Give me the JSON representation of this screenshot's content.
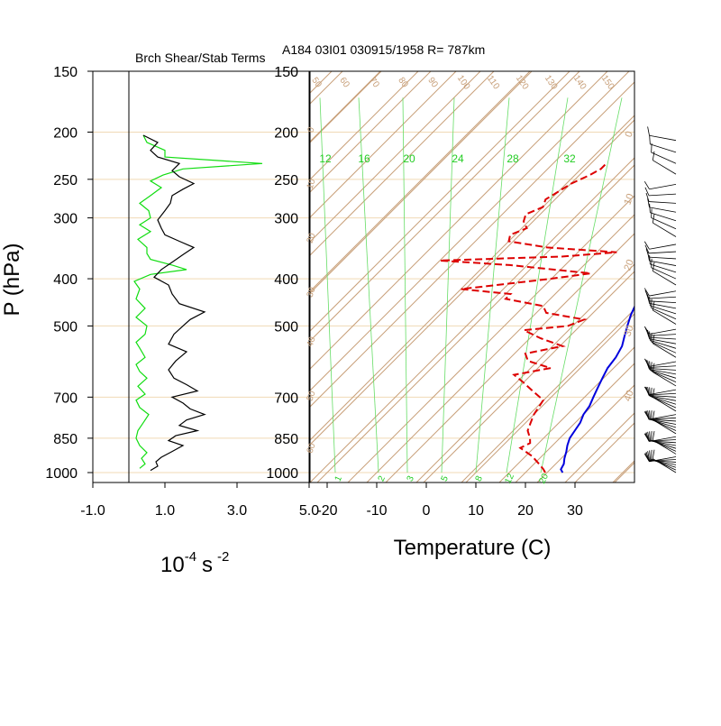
{
  "colors": {
    "background": "#ffffff",
    "isobar": "#f0d9b5",
    "isotherm": "#c8a07a",
    "adiabat_label": "#c8a07a",
    "mixing_line": "#66dd66",
    "mixing_label": "#22cc22",
    "temperature": "#0000dd",
    "dewpoint": "#dd0000",
    "richardson_green": "#11dd11",
    "richardson_black": "#000000",
    "frame": "#000000",
    "barb": "#000000"
  },
  "figure": {
    "header": "A184 03I01 030915/1958 R= 787km",
    "left_title": "Brch Shear/Stab Terms",
    "y_axis_title": "P (hPa)",
    "left_unit_base": "10",
    "left_unit_exp": "-4",
    "left_unit_s": "s",
    "left_unit_s_exp": "-2",
    "x_axis_title": "Temperature (C)"
  },
  "chart_data": [
    {
      "type": "line",
      "title": "Brch Shear/Stab Terms",
      "ylabel": "P (hPa)",
      "xlabel": "10-4 s -2",
      "y_scale": "log",
      "y_reversed": true,
      "xlim": [
        -1.0,
        5.0
      ],
      "ylim": [
        1000,
        150
      ],
      "x_ticks": [
        "-1.0",
        "1.0",
        "3.0",
        "5.0"
      ],
      "x_tick_values": [
        -1.0,
        1.0,
        3.0,
        5.0
      ],
      "y_ticks": [
        "150",
        "200",
        "250",
        "300",
        "400",
        "500",
        "700",
        "850",
        "1000"
      ],
      "y_tick_values": [
        150,
        200,
        250,
        300,
        400,
        500,
        700,
        850,
        1000
      ],
      "zero_line_x": 0,
      "series": [
        {
          "color": "#11dd11",
          "points": [
            [
              0.3,
              980
            ],
            [
              0.45,
              960
            ],
            [
              0.35,
              935
            ],
            [
              0.5,
              910
            ],
            [
              0.3,
              880
            ],
            [
              0.2,
              850
            ],
            [
              0.25,
              820
            ],
            [
              0.4,
              790
            ],
            [
              0.55,
              760
            ],
            [
              0.3,
              735
            ],
            [
              0.2,
              710
            ],
            [
              0.45,
              690
            ],
            [
              0.25,
              665
            ],
            [
              0.5,
              640
            ],
            [
              0.3,
              620
            ],
            [
              0.2,
              600
            ],
            [
              0.45,
              580
            ],
            [
              0.3,
              555
            ],
            [
              0.2,
              540
            ],
            [
              0.45,
              520
            ],
            [
              0.5,
              500
            ],
            [
              0.2,
              480
            ],
            [
              0.45,
              460
            ],
            [
              0.2,
              440
            ],
            [
              0.3,
              420
            ],
            [
              0.15,
              405
            ],
            [
              0.6,
              392
            ],
            [
              1.6,
              383
            ],
            [
              1.2,
              375
            ],
            [
              0.6,
              365
            ],
            [
              0.5,
              355
            ],
            [
              0.5,
              345
            ],
            [
              0.25,
              332
            ],
            [
              0.6,
              320
            ],
            [
              0.3,
              310
            ],
            [
              0.6,
              300
            ],
            [
              0.55,
              290
            ],
            [
              0.3,
              280
            ],
            [
              0.6,
              270
            ],
            [
              0.9,
              260
            ],
            [
              0.6,
              252
            ],
            [
              0.95,
              245
            ],
            [
              1.5,
              238
            ],
            [
              3.7,
              232
            ],
            [
              1.0,
              225
            ],
            [
              1.0,
              218
            ],
            [
              0.5,
              210
            ],
            [
              0.4,
              203
            ]
          ]
        },
        {
          "color": "#000000",
          "points": [
            [
              0.6,
              990
            ],
            [
              0.8,
              970
            ],
            [
              0.75,
              950
            ],
            [
              0.9,
              930
            ],
            [
              1.2,
              905
            ],
            [
              1.5,
              880
            ],
            [
              1.1,
              860
            ],
            [
              1.3,
              840
            ],
            [
              1.9,
              820
            ],
            [
              1.4,
              800
            ],
            [
              1.6,
              780
            ],
            [
              2.1,
              760
            ],
            [
              1.7,
              740
            ],
            [
              1.5,
              720
            ],
            [
              1.2,
              700
            ],
            [
              1.9,
              680
            ],
            [
              1.6,
              660
            ],
            [
              1.25,
              640
            ],
            [
              1.1,
              615
            ],
            [
              1.3,
              590
            ],
            [
              1.6,
              565
            ],
            [
              1.1,
              545
            ],
            [
              1.25,
              520
            ],
            [
              1.5,
              500
            ],
            [
              1.7,
              485
            ],
            [
              2.1,
              468
            ],
            [
              1.4,
              450
            ],
            [
              1.2,
              430
            ],
            [
              1.1,
              412
            ],
            [
              0.7,
              397
            ],
            [
              0.9,
              383
            ],
            [
              1.2,
              370
            ],
            [
              1.5,
              357
            ],
            [
              1.8,
              345
            ],
            [
              1.4,
              335
            ],
            [
              1.0,
              325
            ],
            [
              0.9,
              315
            ],
            [
              0.8,
              303
            ],
            [
              1.0,
              290
            ],
            [
              1.15,
              280
            ],
            [
              1.2,
              270
            ],
            [
              1.5,
              262
            ],
            [
              1.8,
              255
            ],
            [
              1.4,
              247
            ],
            [
              1.2,
              240
            ],
            [
              1.4,
              232
            ],
            [
              0.8,
              225
            ],
            [
              0.6,
              218
            ],
            [
              0.8,
              210
            ],
            [
              0.4,
              203
            ]
          ]
        }
      ]
    },
    {
      "type": "line",
      "title": "A184 03I01 030915/1958 R= 787km",
      "xlabel": "Temperature (C)",
      "ylabel": "P (hPa)",
      "y_scale": "log",
      "y_reversed": true,
      "skewed": true,
      "xlim": [
        -23,
        40
      ],
      "ylim": [
        1050,
        150
      ],
      "x_ticks": [
        "-20",
        "-10",
        "0",
        "10",
        "20",
        "30"
      ],
      "x_tick_values": [
        -20,
        -10,
        0,
        10,
        20,
        30
      ],
      "y_ticks": [
        "150",
        "200",
        "250",
        "300",
        "400",
        "500",
        "700",
        "850",
        "1000"
      ],
      "y_tick_values": [
        150,
        200,
        250,
        300,
        400,
        500,
        700,
        850,
        1000
      ],
      "isotherms": [
        -110,
        -100,
        -90,
        -80,
        -70,
        -60,
        -50,
        -40,
        -30,
        -20,
        -10,
        0,
        10,
        20,
        30,
        40
      ],
      "dry_adiabat_labels": [
        "50",
        "60",
        "70",
        "80",
        "90",
        "100",
        "110",
        "120",
        "130",
        "140",
        "150"
      ],
      "mixing_ratio_top_labels": [
        "12",
        "16",
        "20",
        "24",
        "28",
        "32"
      ],
      "mixing_ratio_bottom_labels": [
        "1",
        "2",
        "3",
        "5",
        "8",
        "12",
        "20"
      ],
      "side_labels": [
        "0",
        "10",
        "20",
        "30",
        "40",
        "50",
        "60"
      ],
      "series": [
        {
          "name": "",
          "color": "#0000dd",
          "style": "solid",
          "points": [
            [
              27.5,
              1000
            ],
            [
              26.5,
              985
            ],
            [
              26,
              960
            ],
            [
              25,
              935
            ],
            [
              24,
              905
            ],
            [
              23,
              880
            ],
            [
              22,
              850
            ],
            [
              21.5,
              820
            ],
            [
              21,
              790
            ],
            [
              20,
              760
            ],
            [
              19.5,
              730
            ],
            [
              18.5,
              700
            ],
            [
              17.5,
              670
            ],
            [
              16.5,
              640
            ],
            [
              15.5,
              610
            ],
            [
              15,
              580
            ],
            [
              14,
              550
            ],
            [
              12.5,
              525
            ],
            [
              11,
              500
            ],
            [
              9.5,
              475
            ],
            [
              8.5,
              455
            ],
            [
              7.5,
              435
            ],
            [
              6.5,
              415
            ],
            [
              5.5,
              395
            ],
            [
              4.5,
              375
            ],
            [
              3.5,
              355
            ],
            [
              2.5,
              340
            ],
            [
              1.5,
              325
            ],
            [
              0.5,
              310
            ],
            [
              -0.5,
              295
            ],
            [
              -1.5,
              282
            ],
            [
              -2.5,
              270
            ],
            [
              -3.5,
              258
            ],
            [
              -4.5,
              246
            ],
            [
              -5.5,
              235
            ],
            [
              -7,
              225
            ],
            [
              -9,
              213
            ],
            [
              -10.5,
              200
            ]
          ]
        },
        {
          "name": "",
          "color": "#dd0000",
          "style": "dashed",
          "points": [
            [
              24,
              1000
            ],
            [
              23,
              985
            ],
            [
              21,
              960
            ],
            [
              18,
              925
            ],
            [
              14,
              890
            ],
            [
              15,
              870
            ],
            [
              14,
              850
            ],
            [
              12,
              820
            ],
            [
              11,
              790
            ],
            [
              10,
              760
            ],
            [
              9.5,
              735
            ],
            [
              9,
              710
            ],
            [
              5,
              680
            ],
            [
              1,
              650
            ],
            [
              -2,
              630
            ],
            [
              4,
              610
            ],
            [
              -2,
              590
            ],
            [
              -4,
              570
            ],
            [
              2,
              550
            ],
            [
              -4,
              530
            ],
            [
              -9,
              510
            ],
            [
              -1,
              500
            ],
            [
              1,
              485
            ],
            [
              -8,
              470
            ],
            [
              -10,
              455
            ],
            [
              -19,
              440
            ],
            [
              -19,
              430
            ],
            [
              -30,
              420
            ],
            [
              -22,
              410
            ],
            [
              -14,
              400
            ],
            [
              -7,
              390
            ],
            [
              -25,
              375
            ],
            [
              -40,
              367
            ],
            [
              -16,
              360
            ],
            [
              -6,
              353
            ],
            [
              -21,
              345
            ],
            [
              -30,
              335
            ],
            [
              -31,
              325
            ],
            [
              -29,
              315
            ],
            [
              -31,
              305
            ],
            [
              -32,
              295
            ],
            [
              -30,
              285
            ],
            [
              -31,
              275
            ],
            [
              -30,
              265
            ],
            [
              -29,
              255
            ],
            [
              -27,
              245
            ],
            [
              -26,
              238
            ],
            [
              -26,
              232
            ]
          ]
        }
      ]
    }
  ]
}
